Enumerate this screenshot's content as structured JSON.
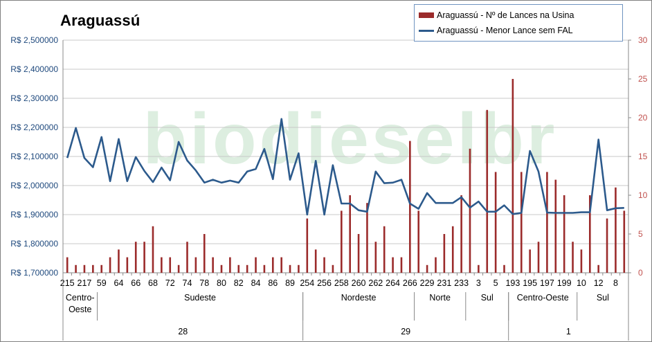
{
  "chart_data": {
    "type": "bar",
    "title": "Araguassú",
    "watermark": "biodieselbr",
    "series": [
      {
        "name": "Araguassú - Nº de Lances na Usina",
        "kind": "bar",
        "axis": "right",
        "color": "#9b2b2b",
        "values": [
          2,
          1,
          1,
          1,
          1,
          2,
          3,
          2,
          4,
          4,
          6,
          2,
          2,
          1,
          4,
          2,
          5,
          2,
          1,
          2,
          1,
          1,
          2,
          1,
          2,
          2,
          1,
          1,
          7,
          3,
          2,
          1,
          8,
          10,
          5,
          9,
          4,
          6,
          2,
          2,
          17,
          8,
          1,
          2,
          5,
          6,
          10,
          16,
          1,
          21,
          13,
          1,
          25,
          13,
          3,
          4,
          13,
          12,
          10,
          4,
          3,
          10,
          1,
          7,
          11,
          8
        ]
      },
      {
        "name": "Araguassú - Menor Lance sem FAL",
        "kind": "line",
        "axis": "left",
        "color": "#2c5a8c",
        "values": [
          2095000,
          2198000,
          2095000,
          2063000,
          2167000,
          2015000,
          2160000,
          2015000,
          2098000,
          2050000,
          2012000,
          2062000,
          2018000,
          2150000,
          2086000,
          2052000,
          2010000,
          2020000,
          2010000,
          2017000,
          2010000,
          2048000,
          2057000,
          2126000,
          2022000,
          2229000,
          2020000,
          2111000,
          1900000,
          2085000,
          1900000,
          2070000,
          1938000,
          1938000,
          1915000,
          1910000,
          2048000,
          2008000,
          2010000,
          2020000,
          1938000,
          1920000,
          1974000,
          1940000,
          1940000,
          1940000,
          1960000,
          1924000,
          1945000,
          1910000,
          1910000,
          1932000,
          1902000,
          1906000,
          2119000,
          2048000,
          1907000,
          1906000,
          1906000,
          1906000,
          1908000,
          1908000,
          2158000,
          1915000,
          1922000,
          1923000
        ]
      }
    ],
    "x_tick_labels": [
      {
        "i": 0,
        "label": "215"
      },
      {
        "i": 2,
        "label": "217"
      },
      {
        "i": 4,
        "label": "59"
      },
      {
        "i": 6,
        "label": "64"
      },
      {
        "i": 8,
        "label": "66"
      },
      {
        "i": 10,
        "label": "68"
      },
      {
        "i": 12,
        "label": "72"
      },
      {
        "i": 14,
        "label": "74"
      },
      {
        "i": 16,
        "label": "78"
      },
      {
        "i": 18,
        "label": "80"
      },
      {
        "i": 20,
        "label": "82"
      },
      {
        "i": 22,
        "label": "84"
      },
      {
        "i": 24,
        "label": "86"
      },
      {
        "i": 26,
        "label": "89"
      },
      {
        "i": 28,
        "label": "254"
      },
      {
        "i": 30,
        "label": "256"
      },
      {
        "i": 32,
        "label": "258"
      },
      {
        "i": 34,
        "label": "260"
      },
      {
        "i": 36,
        "label": "262"
      },
      {
        "i": 38,
        "label": "264"
      },
      {
        "i": 40,
        "label": "266"
      },
      {
        "i": 42,
        "label": "229"
      },
      {
        "i": 44,
        "label": "231"
      },
      {
        "i": 46,
        "label": "233"
      },
      {
        "i": 48,
        "label": "3"
      },
      {
        "i": 50,
        "label": "5"
      },
      {
        "i": 52,
        "label": "193"
      },
      {
        "i": 54,
        "label": "195"
      },
      {
        "i": 56,
        "label": "197"
      },
      {
        "i": 58,
        "label": "199"
      },
      {
        "i": 60,
        "label": "10"
      },
      {
        "i": 62,
        "label": "12"
      },
      {
        "i": 64,
        "label": "8"
      }
    ],
    "regions": [
      {
        "label": "Centro-Oeste",
        "start": 0,
        "end": 3
      },
      {
        "label": "Sudeste",
        "start": 4,
        "end": 27
      },
      {
        "label": "Nordeste",
        "start": 28,
        "end": 40
      },
      {
        "label": "Norte",
        "start": 41,
        "end": 46
      },
      {
        "label": "Sul",
        "start": 47,
        "end": 51
      },
      {
        "label": "Centro-Oeste",
        "start": 52,
        "end": 59
      },
      {
        "label": "Sul",
        "start": 60,
        "end": 65
      }
    ],
    "groups": [
      {
        "label": "28",
        "start": 0,
        "end": 27
      },
      {
        "label": "29",
        "start": 28,
        "end": 51
      },
      {
        "label": "1",
        "start": 52,
        "end": 65
      }
    ],
    "y_left": {
      "min": 1700000,
      "max": 2500000,
      "step": 100000,
      "tick_labels": [
        "R$ 1,700000",
        "R$ 1,800000",
        "R$ 1,900000",
        "R$ 2,000000",
        "R$ 2,100000",
        "R$ 2,200000",
        "R$ 2,300000",
        "R$ 2,400000",
        "R$ 2,500000"
      ]
    },
    "y_right": {
      "min": 0,
      "max": 30,
      "step": 5,
      "tick_labels": [
        "0",
        "5",
        "10",
        "15",
        "20",
        "25",
        "30"
      ]
    },
    "legend_placement": "top-right",
    "grid": true
  }
}
